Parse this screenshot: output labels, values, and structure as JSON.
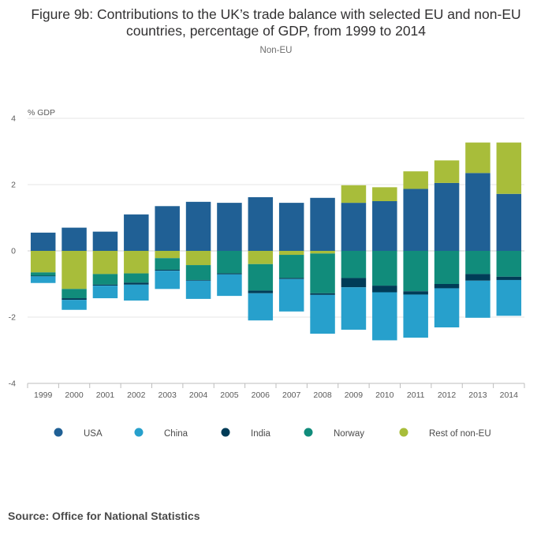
{
  "title": "Figure 9b: Contributions to the UK’s trade balance with selected EU and non-EU countries, percentage of GDP, from 1999 to 2014",
  "subtitle": "Non-EU",
  "source": "Source: Office for National Statistics",
  "colors": {
    "USA": "#206095",
    "China": "#27a0cc",
    "India": "#003c57",
    "Norway": "#118c7b",
    "Rest of non-EU": "#a8bd3a"
  },
  "chart_data": {
    "type": "bar",
    "stacked": true,
    "ylabel": "% GDP",
    "ylim": [
      -4,
      4
    ],
    "yticks": [
      4,
      2,
      0,
      -2,
      -4
    ],
    "categories": [
      "1999",
      "2000",
      "2001",
      "2002",
      "2003",
      "2004",
      "2005",
      "2006",
      "2007",
      "2008",
      "2009",
      "2010",
      "2011",
      "2012",
      "2013",
      "2014"
    ],
    "series": [
      {
        "name": "USA",
        "values": [
          0.55,
          0.7,
          0.58,
          1.1,
          1.35,
          1.48,
          1.45,
          1.62,
          1.45,
          1.6,
          1.45,
          1.5,
          1.87,
          2.05,
          2.35,
          1.72
        ]
      },
      {
        "name": "Rest of non-EU",
        "values": [
          -0.65,
          -1.15,
          -0.7,
          -0.68,
          -0.22,
          -0.43,
          0,
          -0.4,
          -0.12,
          -0.08,
          0.53,
          0.42,
          0.53,
          0.68,
          0.92,
          1.55
        ]
      },
      {
        "name": "Norway",
        "values": [
          -0.1,
          -0.28,
          -0.32,
          -0.28,
          -0.35,
          -0.45,
          -0.68,
          -0.8,
          -0.7,
          -1.2,
          -0.82,
          -1.05,
          -1.22,
          -1.0,
          -0.7,
          -0.78
        ]
      },
      {
        "name": "India",
        "values": [
          -0.02,
          -0.05,
          -0.03,
          -0.06,
          -0.03,
          -0.02,
          -0.03,
          -0.08,
          -0.03,
          -0.05,
          -0.28,
          -0.2,
          -0.1,
          -0.13,
          -0.2,
          -0.1
        ]
      },
      {
        "name": "China",
        "values": [
          -0.2,
          -0.3,
          -0.38,
          -0.48,
          -0.55,
          -0.55,
          -0.65,
          -0.82,
          -0.98,
          -1.17,
          -1.28,
          -1.45,
          -1.3,
          -1.18,
          -1.12,
          -1.08
        ]
      }
    ],
    "legend": [
      "USA",
      "China",
      "India",
      "Norway",
      "Rest of non-EU"
    ],
    "legend_position": "bottom"
  }
}
